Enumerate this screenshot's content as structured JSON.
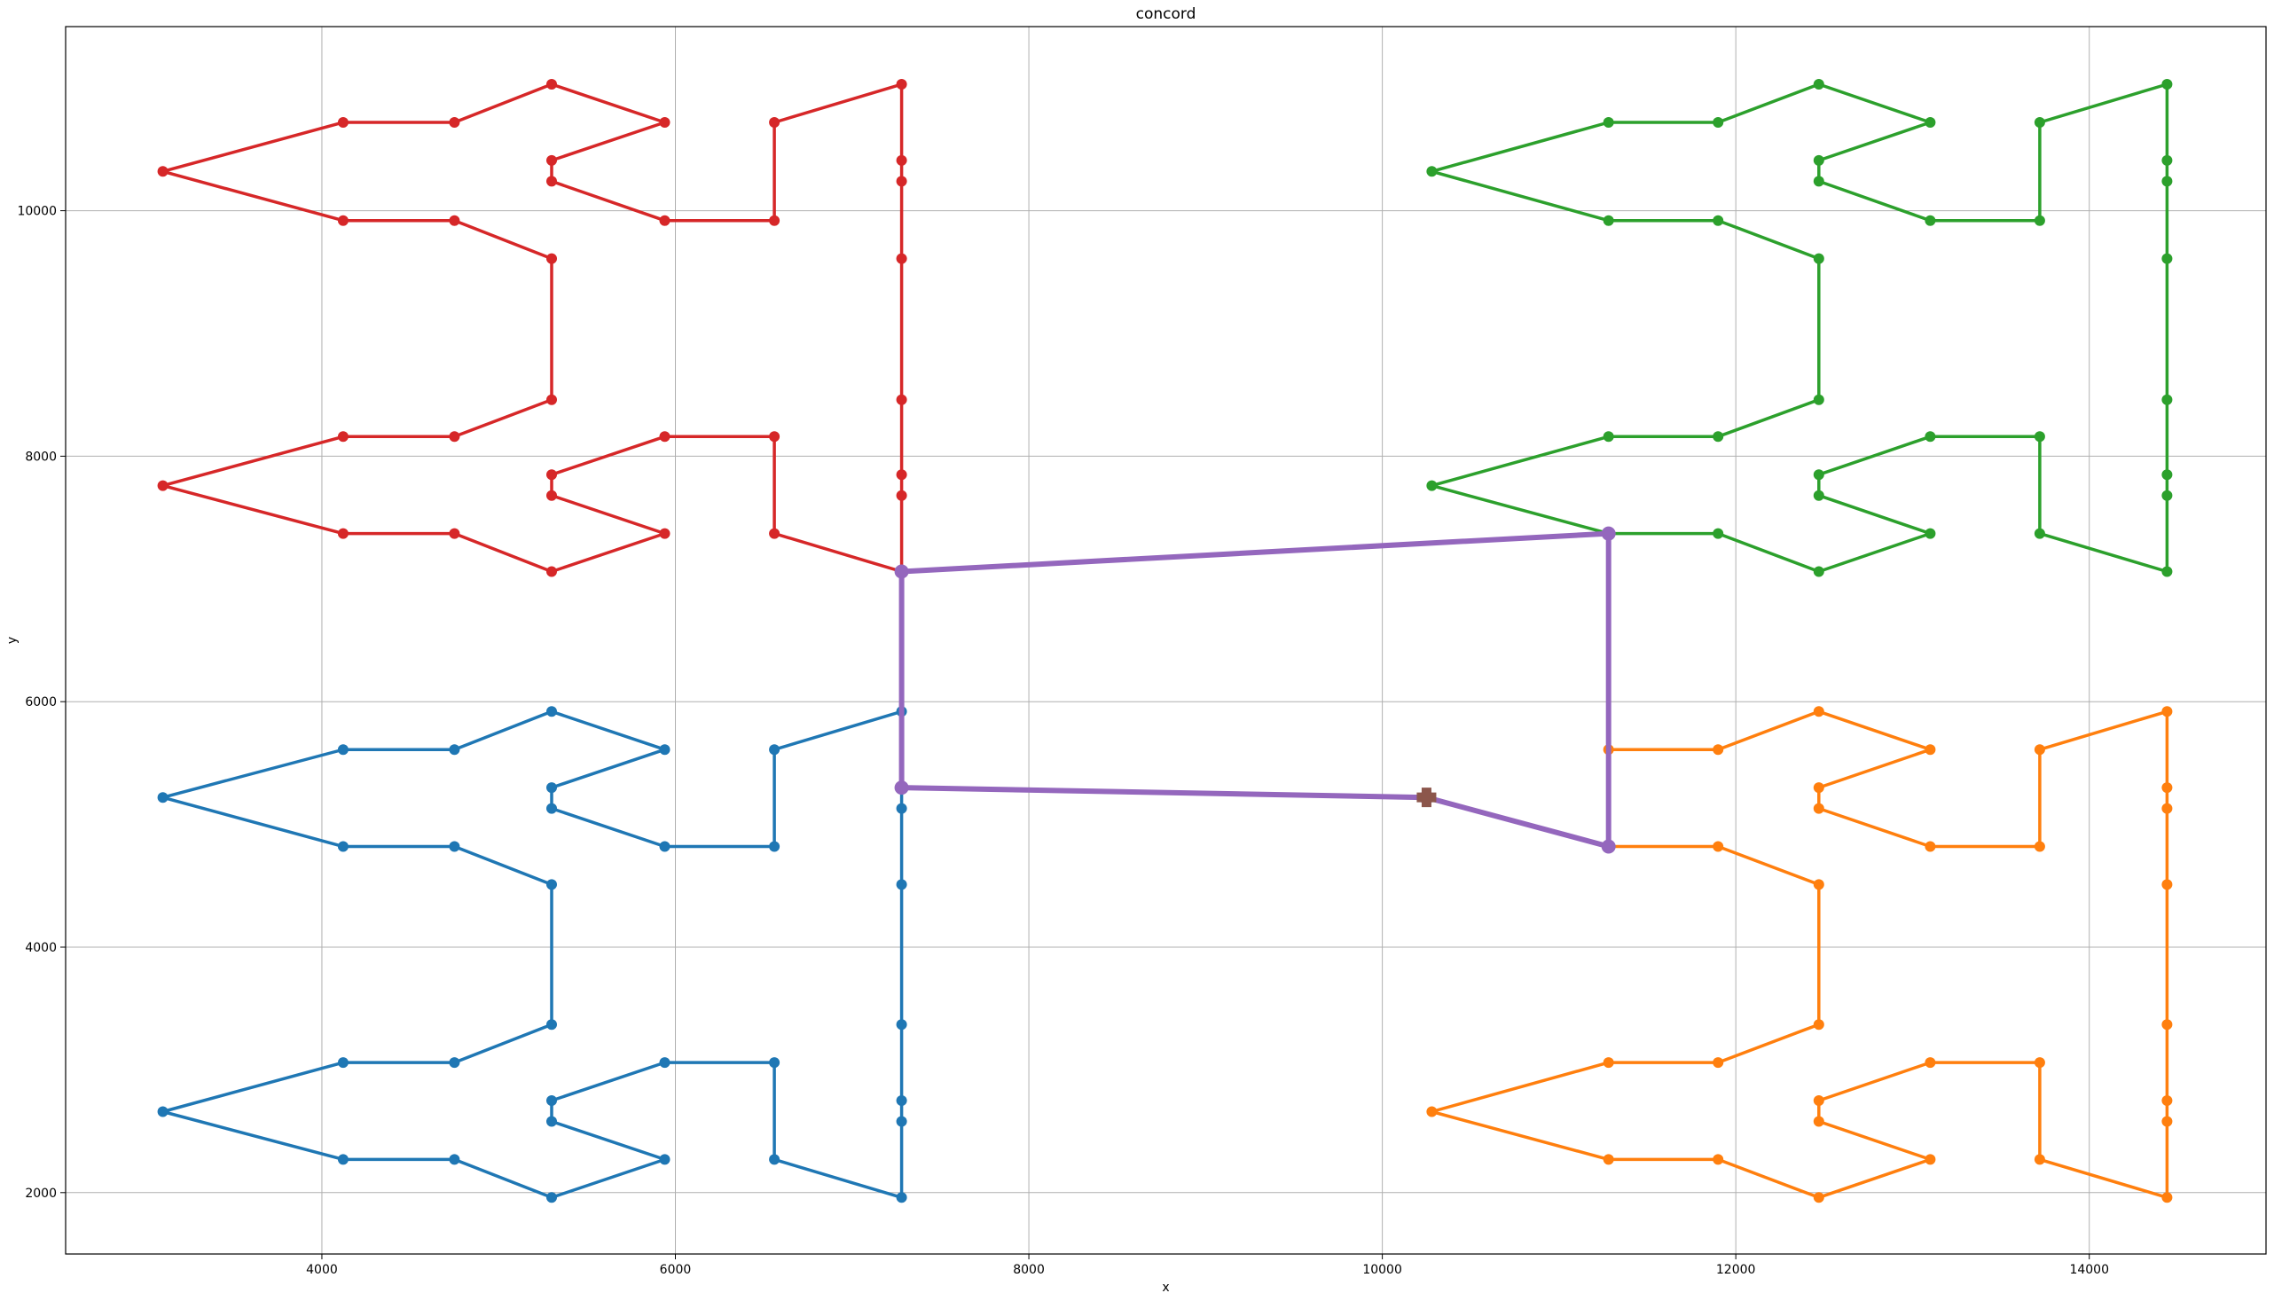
{
  "chart_data": {
    "type": "line",
    "title": "concord",
    "xlabel": "x",
    "ylabel": "y",
    "xlim": [
      2550,
      15000
    ],
    "ylim": [
      1500,
      11500
    ],
    "xticks": [
      4000,
      6000,
      8000,
      10000,
      12000,
      14000
    ],
    "yticks": [
      2000,
      4000,
      6000,
      8000,
      10000
    ],
    "grid": true,
    "colors": {
      "red": "#d62728",
      "blue": "#1f77b4",
      "green": "#2ca02c",
      "orange": "#ff7f0e",
      "purple": "#9467bd",
      "brown": "#8c564b",
      "grid": "#b0b0b0"
    },
    "series": [
      {
        "color": "#d62728",
        "points": [
          [
            7280,
            7060
          ],
          [
            6560,
            7370
          ],
          [
            6560,
            8160
          ],
          [
            5940,
            8160
          ],
          [
            5300,
            7850
          ],
          [
            5300,
            7680
          ],
          [
            5940,
            7370
          ],
          [
            5300,
            7060
          ],
          [
            4750,
            7370
          ],
          [
            4120,
            7370
          ],
          [
            3100,
            7760
          ],
          [
            4120,
            8160
          ],
          [
            4750,
            8160
          ],
          [
            5300,
            8460
          ],
          [
            5300,
            9610
          ],
          [
            4750,
            9920
          ],
          [
            4120,
            9920
          ],
          [
            3100,
            10320
          ],
          [
            4120,
            10720
          ],
          [
            4750,
            10720
          ],
          [
            5300,
            11030
          ],
          [
            5940,
            10720
          ],
          [
            5300,
            10410
          ],
          [
            5300,
            10240
          ],
          [
            5940,
            9920
          ],
          [
            6560,
            9920
          ],
          [
            6560,
            10720
          ],
          [
            7280,
            11030
          ],
          [
            7280,
            10410
          ],
          [
            7280,
            10240
          ],
          [
            7280,
            9610
          ],
          [
            7280,
            8460
          ],
          [
            7280,
            7850
          ],
          [
            7280,
            7680
          ],
          [
            7280,
            7060
          ]
        ]
      },
      {
        "color": "#1f77b4",
        "points": [
          [
            7280,
            5300
          ],
          [
            7280,
            5920
          ],
          [
            6560,
            5610
          ],
          [
            6560,
            4820
          ],
          [
            5940,
            4820
          ],
          [
            5300,
            5130
          ],
          [
            5300,
            5300
          ],
          [
            5940,
            5610
          ],
          [
            5300,
            5920
          ],
          [
            4750,
            5610
          ],
          [
            4120,
            5610
          ],
          [
            3100,
            5220
          ],
          [
            4120,
            4820
          ],
          [
            4750,
            4820
          ],
          [
            5300,
            4510
          ],
          [
            5300,
            3370
          ],
          [
            4750,
            3060
          ],
          [
            4120,
            3060
          ],
          [
            3100,
            2660
          ],
          [
            4120,
            2270
          ],
          [
            4750,
            2270
          ],
          [
            5300,
            1960
          ],
          [
            5940,
            2270
          ],
          [
            5300,
            2580
          ],
          [
            5300,
            2750
          ],
          [
            5940,
            3060
          ],
          [
            6560,
            3060
          ],
          [
            6560,
            2270
          ],
          [
            7280,
            1960
          ],
          [
            7280,
            2580
          ],
          [
            7280,
            2750
          ],
          [
            7280,
            3370
          ],
          [
            7280,
            4510
          ],
          [
            7280,
            5130
          ],
          [
            7280,
            5300
          ]
        ]
      },
      {
        "color": "#2ca02c",
        "points": [
          [
            11280,
            7370
          ],
          [
            10280,
            7760
          ],
          [
            11280,
            8160
          ],
          [
            11900,
            8160
          ],
          [
            12470,
            8460
          ],
          [
            12470,
            9610
          ],
          [
            11900,
            9920
          ],
          [
            11280,
            9920
          ],
          [
            10280,
            10320
          ],
          [
            11280,
            10720
          ],
          [
            11900,
            10720
          ],
          [
            12470,
            11030
          ],
          [
            13100,
            10720
          ],
          [
            12470,
            10410
          ],
          [
            12470,
            10240
          ],
          [
            13100,
            9920
          ],
          [
            13720,
            9920
          ],
          [
            13720,
            10720
          ],
          [
            14440,
            11030
          ],
          [
            14440,
            10410
          ],
          [
            14440,
            10240
          ],
          [
            14440,
            9610
          ],
          [
            14440,
            8460
          ],
          [
            14440,
            7850
          ],
          [
            14440,
            7680
          ],
          [
            14440,
            7060
          ],
          [
            13720,
            7370
          ],
          [
            13720,
            8160
          ],
          [
            13100,
            8160
          ],
          [
            12470,
            7850
          ],
          [
            12470,
            7680
          ],
          [
            13100,
            7370
          ],
          [
            12470,
            7060
          ],
          [
            11900,
            7370
          ],
          [
            11280,
            7370
          ]
        ]
      },
      {
        "color": "#ff7f0e",
        "points": [
          [
            11280,
            4820
          ],
          [
            11900,
            4820
          ],
          [
            12470,
            4510
          ],
          [
            12470,
            3370
          ],
          [
            11900,
            3060
          ],
          [
            11280,
            3060
          ],
          [
            10280,
            2660
          ],
          [
            11280,
            2270
          ],
          [
            11900,
            2270
          ],
          [
            12470,
            1960
          ],
          [
            13100,
            2270
          ],
          [
            12470,
            2580
          ],
          [
            12470,
            2750
          ],
          [
            13100,
            3060
          ],
          [
            13720,
            3060
          ],
          [
            13720,
            2270
          ],
          [
            14440,
            1960
          ],
          [
            14440,
            2580
          ],
          [
            14440,
            2750
          ],
          [
            14440,
            3370
          ],
          [
            14440,
            4510
          ],
          [
            14440,
            5130
          ],
          [
            14440,
            5300
          ],
          [
            14440,
            5920
          ],
          [
            13720,
            5610
          ],
          [
            13720,
            4820
          ],
          [
            13100,
            4820
          ],
          [
            12470,
            5130
          ],
          [
            12470,
            5300
          ],
          [
            13100,
            5610
          ],
          [
            12470,
            5920
          ],
          [
            11900,
            5610
          ],
          [
            11280,
            5610
          ],
          [
            11280,
            4820
          ]
        ]
      },
      {
        "color": "#9467bd",
        "points": [
          [
            10250,
            5220
          ],
          [
            7280,
            5300
          ],
          [
            7280,
            7060
          ],
          [
            11280,
            7370
          ],
          [
            11280,
            4820
          ],
          [
            10250,
            5220
          ]
        ]
      }
    ],
    "start_marker": {
      "x": 10250,
      "y": 5220,
      "color": "#8c564b",
      "shape": "plus"
    }
  }
}
